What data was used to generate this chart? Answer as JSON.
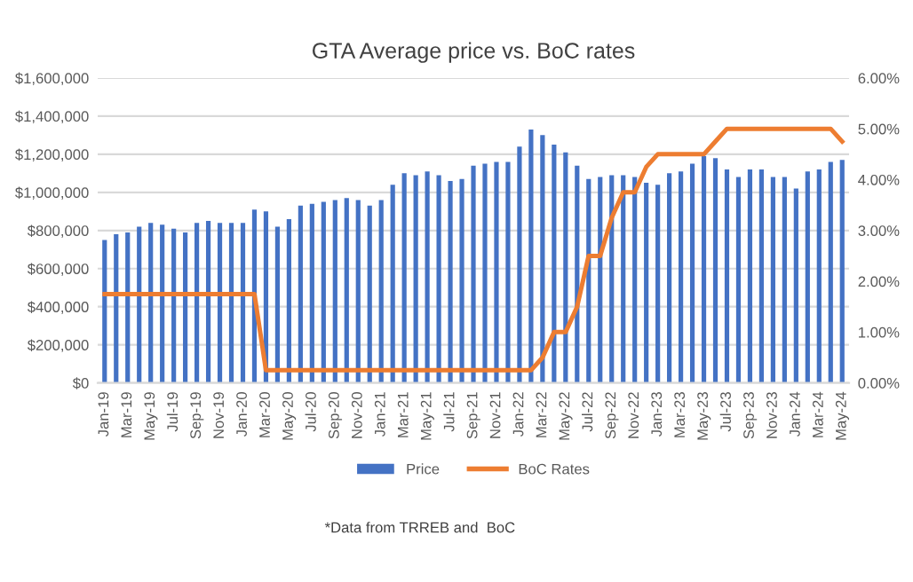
{
  "chart_data": {
    "type": "bar",
    "title": "GTA Average price vs. BoC rates",
    "categories": [
      "Jan-19",
      null,
      "Mar-19",
      null,
      "May-19",
      null,
      "Jul-19",
      null,
      "Sep-19",
      null,
      "Nov-19",
      null,
      "Jan-20",
      null,
      "Mar-20",
      null,
      "May-20",
      null,
      "Jul-20",
      null,
      "Sep-20",
      null,
      "Nov-20",
      null,
      "Jan-21",
      null,
      "Mar-21",
      null,
      "May-21",
      null,
      "Jul-21",
      null,
      "Sep-21",
      null,
      "Nov-21",
      null,
      "Jan-22",
      null,
      "Mar-22",
      null,
      "May-22",
      null,
      "Jul-22",
      null,
      "Sep-22",
      null,
      "Nov-22",
      null,
      "Jan-23",
      null,
      "Mar-23",
      null,
      "May-23",
      null,
      "Jul-23",
      null,
      "Sep-23",
      null,
      "Nov-23",
      null,
      "Jan-24",
      null,
      "Mar-24",
      null,
      "May-24"
    ],
    "series": [
      {
        "name": "Price",
        "color": "#4472c4",
        "values": [
          750000,
          780000,
          790000,
          820000,
          840000,
          830000,
          810000,
          790000,
          840000,
          850000,
          840000,
          840000,
          840000,
          910000,
          900000,
          820000,
          860000,
          930000,
          940000,
          950000,
          960000,
          970000,
          960000,
          930000,
          960000,
          1040000,
          1100000,
          1090000,
          1110000,
          1090000,
          1060000,
          1070000,
          1140000,
          1150000,
          1160000,
          1160000,
          1240000,
          1330000,
          1300000,
          1250000,
          1210000,
          1140000,
          1070000,
          1080000,
          1090000,
          1090000,
          1080000,
          1050000,
          1040000,
          1100000,
          1110000,
          1150000,
          1190000,
          1180000,
          1120000,
          1080000,
          1120000,
          1120000,
          1080000,
          1080000,
          1020000,
          1110000,
          1120000,
          1160000,
          1170000
        ]
      },
      {
        "name": "BoC Rates",
        "type": "line",
        "axis": "y2",
        "color": "#ed7d31",
        "values": [
          1.75,
          1.75,
          1.75,
          1.75,
          1.75,
          1.75,
          1.75,
          1.75,
          1.75,
          1.75,
          1.75,
          1.75,
          1.75,
          1.75,
          0.25,
          0.25,
          0.25,
          0.25,
          0.25,
          0.25,
          0.25,
          0.25,
          0.25,
          0.25,
          0.25,
          0.25,
          0.25,
          0.25,
          0.25,
          0.25,
          0.25,
          0.25,
          0.25,
          0.25,
          0.25,
          0.25,
          0.25,
          0.25,
          0.5,
          1.0,
          1.0,
          1.5,
          2.5,
          2.5,
          3.25,
          3.75,
          3.75,
          4.25,
          4.5,
          4.5,
          4.5,
          4.5,
          4.5,
          4.75,
          5.0,
          5.0,
          5.0,
          5.0,
          5.0,
          5.0,
          5.0,
          5.0,
          5.0,
          5.0,
          4.75
        ]
      }
    ],
    "ylim": [
      0,
      1600000
    ],
    "yticks": [
      {
        "value": 0,
        "label": "$0"
      },
      {
        "value": 200000,
        "label": "$200,000"
      },
      {
        "value": 400000,
        "label": "$400,000"
      },
      {
        "value": 600000,
        "label": "$600,000"
      },
      {
        "value": 800000,
        "label": "$800,000"
      },
      {
        "value": 1000000,
        "label": "$1,000,000"
      },
      {
        "value": 1200000,
        "label": "$1,200,000"
      },
      {
        "value": 1400000,
        "label": "$1,400,000"
      },
      {
        "value": 1600000,
        "label": "$1,600,000"
      }
    ],
    "y2lim": [
      0,
      6
    ],
    "y2ticks": [
      {
        "value": 0,
        "label": "0.00%"
      },
      {
        "value": 1,
        "label": "1.00%"
      },
      {
        "value": 2,
        "label": "2.00%"
      },
      {
        "value": 3,
        "label": "3.00%"
      },
      {
        "value": 4,
        "label": "4.00%"
      },
      {
        "value": 5,
        "label": "5.00%"
      },
      {
        "value": 6,
        "label": "6.00%"
      }
    ],
    "grid": "y",
    "legend": "bottom",
    "annotations": [
      "*Data from TRREB and  BoC"
    ]
  }
}
